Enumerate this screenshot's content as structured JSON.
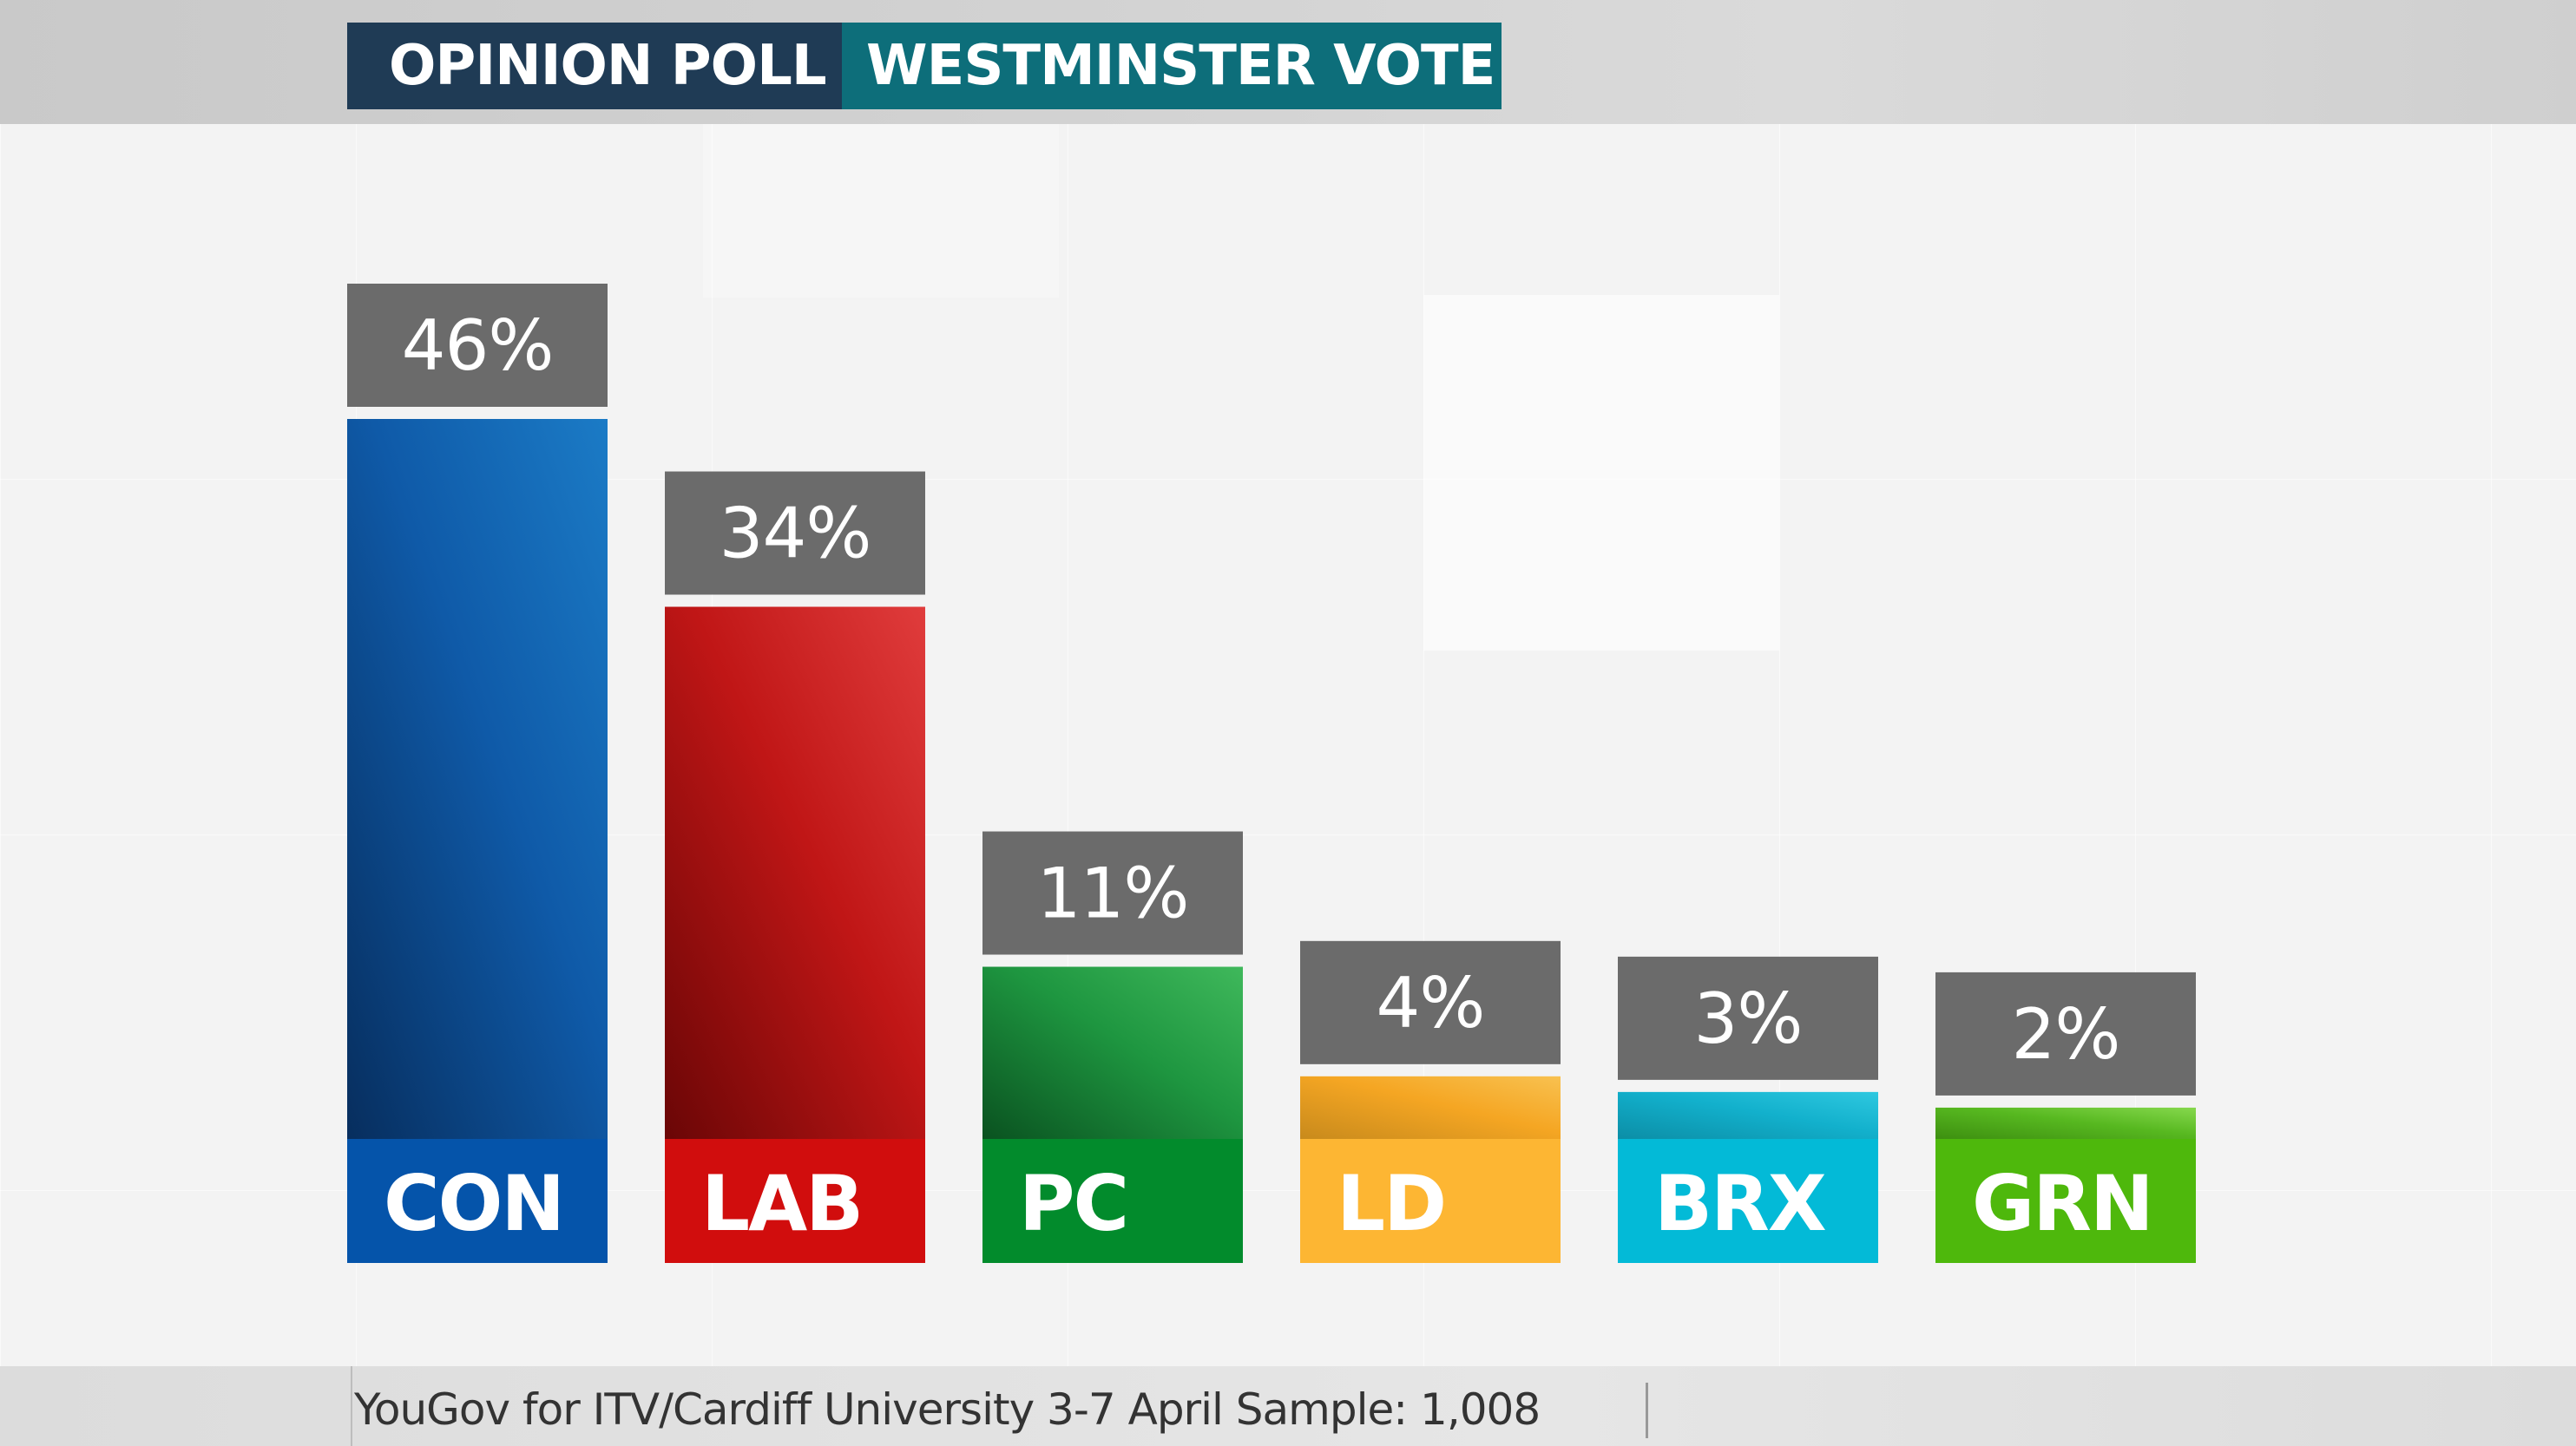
{
  "header": {
    "tag": "OPINION POLL",
    "title": "WESTMINSTER VOTE"
  },
  "footer": {
    "source": "YouGov for ITV/Cardiff University 3-7 April Sample: 1,008"
  },
  "chart_data": {
    "type": "bar",
    "title": "WESTMINSTER VOTE",
    "xlabel": "",
    "ylabel": "",
    "unit": "%",
    "categories": [
      "CON",
      "LAB",
      "PC",
      "LD",
      "BRX",
      "GRN"
    ],
    "values": [
      46,
      34,
      11,
      4,
      3,
      2
    ],
    "value_labels": [
      "46%",
      "34%",
      "11%",
      "4%",
      "3%",
      "2%"
    ],
    "ylim": [
      0,
      46
    ],
    "grid": false,
    "legend": "none",
    "colors": {
      "CON": {
        "light": "#1b7bc6",
        "mid": "#0f5aa8",
        "dark": "#072e5e",
        "base": "#0554aa"
      },
      "LAB": {
        "light": "#e03c3c",
        "mid": "#c01616",
        "dark": "#6a0606",
        "base": "#d10d0d"
      },
      "PC": {
        "light": "#3fb85b",
        "mid": "#1e9640",
        "dark": "#0a5220",
        "base": "#028b2c"
      },
      "LD": {
        "light": "#f8c150",
        "mid": "#f5a623",
        "dark": "#c88a1c",
        "base": "#fdb633"
      },
      "BRX": {
        "light": "#2ec8e0",
        "mid": "#12b0cc",
        "dark": "#0c8ea6",
        "base": "#03bad7"
      },
      "GRN": {
        "light": "#86d84d",
        "mid": "#57b820",
        "dark": "#3d8f10",
        "base": "#4eb80c"
      }
    },
    "value_box_color": "#6b6b6b"
  }
}
